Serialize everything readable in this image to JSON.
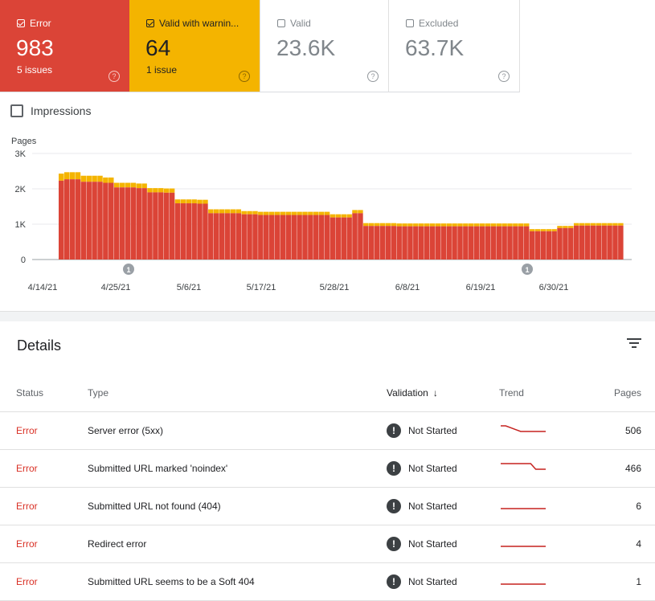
{
  "cards": [
    {
      "label": "Error",
      "value": "983",
      "sub": "5 issues",
      "checked": true
    },
    {
      "label": "Valid with warnin...",
      "value": "64",
      "sub": "1 issue",
      "checked": true
    },
    {
      "label": "Valid",
      "value": "23.6K",
      "sub": "",
      "checked": false
    },
    {
      "label": "Excluded",
      "value": "63.7K",
      "sub": "",
      "checked": false
    }
  ],
  "impressions_label": "Impressions",
  "chart_data": {
    "type": "bar",
    "ylabel": "Pages",
    "ylim": [
      0,
      3000
    ],
    "yticks": [
      "0",
      "1K",
      "2K",
      "3K"
    ],
    "xticks": [
      "4/14/21",
      "4/25/21",
      "5/6/21",
      "5/17/21",
      "5/28/21",
      "6/8/21",
      "6/19/21",
      "6/30/21"
    ],
    "annotations": [
      {
        "label": "1",
        "date": "4/26/21"
      },
      {
        "label": "1",
        "date": "7/1/21"
      }
    ],
    "colors": {
      "error": "#db4437",
      "warning": "#f4b400"
    },
    "series": [
      {
        "name": "Error",
        "values": [
          2230,
          2270,
          2270,
          2270,
          2200,
          2200,
          2200,
          2200,
          2170,
          2170,
          2040,
          2040,
          2040,
          2040,
          2020,
          2020,
          1900,
          1900,
          1900,
          1890,
          1890,
          1590,
          1590,
          1590,
          1590,
          1580,
          1580,
          1310,
          1310,
          1310,
          1310,
          1310,
          1310,
          1280,
          1280,
          1280,
          1260,
          1260,
          1260,
          1260,
          1260,
          1260,
          1260,
          1260,
          1260,
          1260,
          1260,
          1260,
          1260,
          1190,
          1190,
          1190,
          1190,
          1310,
          1310,
          950,
          950,
          950,
          950,
          950,
          950,
          940,
          940,
          940,
          940,
          940,
          940,
          940,
          940,
          940,
          940,
          940,
          940,
          940,
          940,
          940,
          940,
          940,
          940,
          940,
          940,
          940,
          940,
          940,
          940,
          800,
          800,
          800,
          800,
          800,
          890,
          890,
          890,
          960,
          960,
          960,
          960,
          960,
          960,
          960,
          960,
          960
        ],
        "compact": true
      },
      {
        "name": "Valid with warnings",
        "values": [
          200,
          200,
          200,
          200,
          170,
          170,
          170,
          170,
          150,
          150,
          130,
          130,
          130,
          130,
          130,
          130,
          120,
          120,
          120,
          120,
          120,
          110,
          110,
          110,
          110,
          110,
          110,
          110,
          110,
          110,
          110,
          110,
          110,
          90,
          90,
          90,
          90,
          90,
          90,
          90,
          90,
          90,
          90,
          90,
          90,
          90,
          90,
          90,
          90,
          90,
          90,
          90,
          90,
          90,
          90,
          80,
          80,
          80,
          80,
          80,
          80,
          80,
          80,
          80,
          80,
          80,
          80,
          80,
          80,
          80,
          80,
          80,
          80,
          80,
          80,
          80,
          80,
          80,
          80,
          80,
          80,
          80,
          80,
          80,
          80,
          60,
          60,
          60,
          60,
          60,
          60,
          60,
          60,
          70,
          70,
          70,
          70,
          70,
          70,
          70,
          70,
          70
        ]
      }
    ]
  },
  "details": {
    "title": "Details",
    "columns": {
      "status": "Status",
      "type": "Type",
      "validation": "Validation",
      "trend": "Trend",
      "pages": "Pages"
    },
    "rows": [
      {
        "status": "Error",
        "type": "Server error (5xx)",
        "validation": "Not Started",
        "pages": "506",
        "trend": [
          10,
          10,
          9,
          8,
          7,
          7,
          7,
          7,
          7,
          7
        ]
      },
      {
        "status": "Error",
        "type": "Submitted URL marked 'noindex'",
        "validation": "Not Started",
        "pages": "466",
        "trend": [
          9,
          9,
          9,
          9,
          9,
          9,
          9,
          8,
          8,
          8
        ]
      },
      {
        "status": "Error",
        "type": "Submitted URL not found (404)",
        "validation": "Not Started",
        "pages": "6",
        "trend": [
          6,
          6,
          6,
          6,
          6,
          6,
          6,
          6,
          6,
          6
        ]
      },
      {
        "status": "Error",
        "type": "Redirect error",
        "validation": "Not Started",
        "pages": "4",
        "trend": [
          4,
          4,
          4,
          4,
          4,
          4,
          4,
          4,
          4,
          4
        ]
      },
      {
        "status": "Error",
        "type": "Submitted URL seems to be a Soft 404",
        "validation": "Not Started",
        "pages": "1",
        "trend": [
          1,
          1,
          1,
          1,
          1,
          1,
          1,
          1,
          1,
          1
        ]
      }
    ]
  }
}
